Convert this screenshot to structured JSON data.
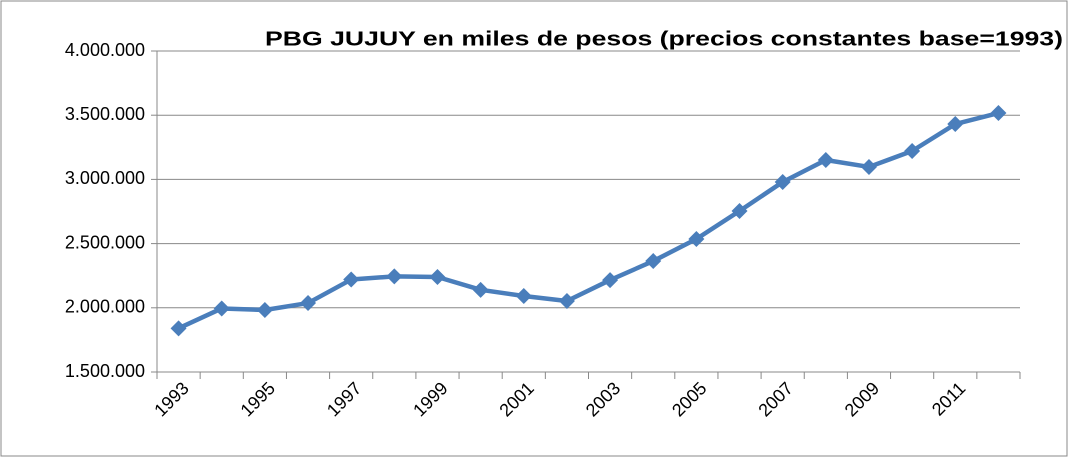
{
  "chart_data": {
    "type": "line",
    "title": "PBG JUJUY en miles de pesos (precios constantes base=1993)",
    "categories": [
      "1993",
      null,
      "1995",
      null,
      "1997",
      null,
      "1999",
      null,
      "2001",
      null,
      "2003",
      null,
      "2005",
      null,
      "2007",
      null,
      "2009",
      null,
      "2011",
      null
    ],
    "series": [
      {
        "name": "PBG",
        "color": "#4a7ebb",
        "values": [
          1840000,
          1995000,
          1983000,
          2037000,
          2220000,
          2245000,
          2240000,
          2140000,
          2092000,
          2053000,
          2216000,
          2364000,
          2536000,
          2754000,
          2980000,
          3151000,
          3097000,
          3221000,
          3431000,
          3517000
        ]
      }
    ],
    "ylim": [
      1500000,
      4000000
    ],
    "yticks": [
      {
        "value": 1500000,
        "label": "1.500.000"
      },
      {
        "value": 2000000,
        "label": "2.000.000"
      },
      {
        "value": 2500000,
        "label": "2.500.000"
      },
      {
        "value": 3000000,
        "label": "3.000.000"
      },
      {
        "value": 3500000,
        "label": "3.500.000"
      },
      {
        "value": 4000000,
        "label": "4.000.000"
      }
    ],
    "grid": true
  }
}
